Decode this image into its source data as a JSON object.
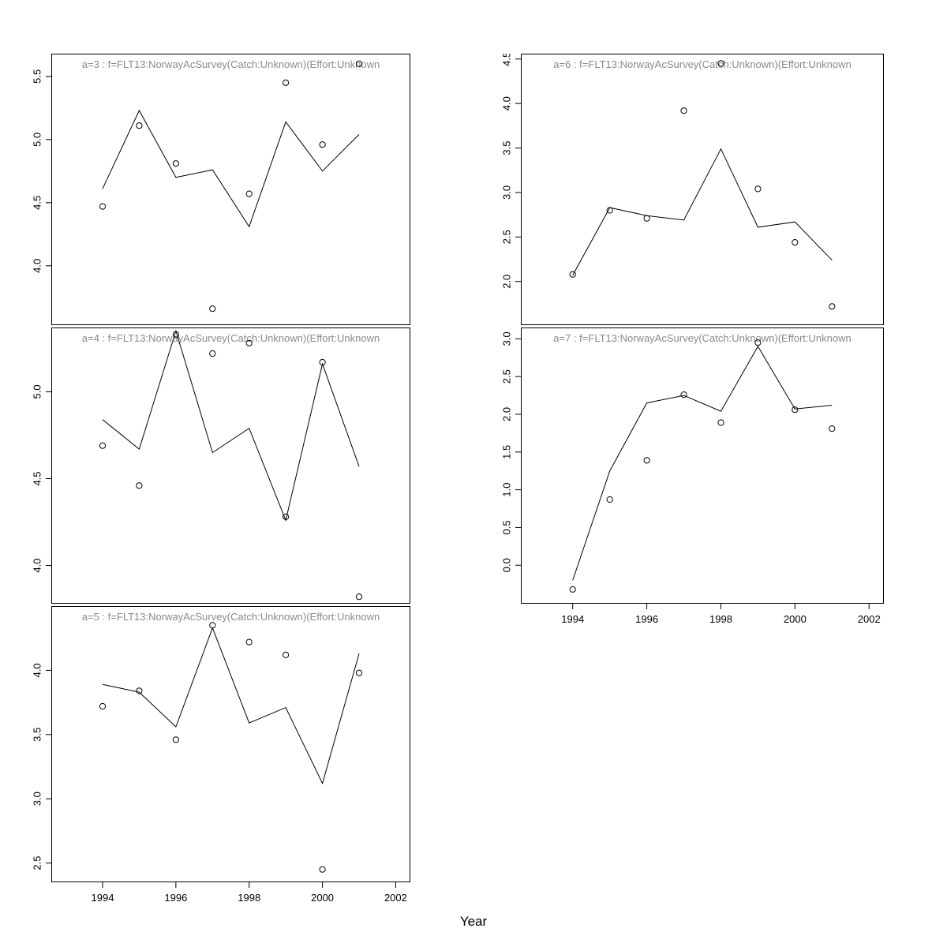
{
  "figure": {
    "xlabel": "Year",
    "background": "#ffffff",
    "line_color": "#000000",
    "point_color": "#000000",
    "title_color": "#8a8a8a"
  },
  "chart_data": [
    {
      "type": "line",
      "panel": "a=3",
      "title": "a=3  :  f=FLT13:NorwayAcSurvey(Catch:Unknown)(Effort:Unknown",
      "x": [
        1994,
        1995,
        1996,
        1997,
        1998,
        1999,
        2000,
        2001
      ],
      "series": [
        {
          "name": "fitted",
          "style": "line",
          "values": [
            4.61,
            5.23,
            4.7,
            4.76,
            4.31,
            5.14,
            4.75,
            5.04
          ]
        },
        {
          "name": "observed",
          "style": "points",
          "values": [
            4.47,
            5.11,
            4.81,
            3.66,
            4.57,
            5.45,
            4.96,
            5.6
          ]
        }
      ],
      "xlim": [
        1992.6,
        2002.4
      ],
      "ylim": [
        3.53,
        5.68
      ],
      "xticks": [
        1994,
        1996,
        1998,
        2000,
        2002
      ],
      "yticks": [
        4.0,
        4.5,
        5.0,
        5.5
      ],
      "x_axis_labels": false,
      "grid": "off",
      "legend": "none"
    },
    {
      "type": "line",
      "panel": "a=4",
      "title": "a=4  :  f=FLT13:NorwayAcSurvey(Catch:Unknown)(Effort:Unknown",
      "x": [
        1994,
        1995,
        1996,
        1997,
        1998,
        1999,
        2000,
        2001
      ],
      "series": [
        {
          "name": "fitted",
          "style": "line",
          "values": [
            4.84,
            4.67,
            5.35,
            4.65,
            4.79,
            4.26,
            5.16,
            4.57
          ]
        },
        {
          "name": "observed",
          "style": "points",
          "values": [
            4.69,
            4.46,
            5.33,
            5.22,
            5.28,
            4.28,
            5.17,
            3.82
          ]
        }
      ],
      "xlim": [
        1992.6,
        2002.4
      ],
      "ylim": [
        3.78,
        5.37
      ],
      "xticks": [
        1994,
        1996,
        1998,
        2000,
        2002
      ],
      "yticks": [
        4.0,
        4.5,
        5.0
      ],
      "x_axis_labels": false,
      "grid": "off",
      "legend": "none"
    },
    {
      "type": "line",
      "panel": "a=5",
      "title": "a=5  :  f=FLT13:NorwayAcSurvey(Catch:Unknown)(Effort:Unknown",
      "x": [
        1994,
        1995,
        1996,
        1997,
        1998,
        1999,
        2000,
        2001
      ],
      "series": [
        {
          "name": "fitted",
          "style": "line",
          "values": [
            3.89,
            3.83,
            3.56,
            4.33,
            3.59,
            3.71,
            3.12,
            4.13
          ]
        },
        {
          "name": "observed",
          "style": "points",
          "values": [
            3.72,
            3.84,
            3.46,
            4.35,
            4.22,
            4.12,
            2.45,
            3.98
          ]
        }
      ],
      "xlim": [
        1992.6,
        2002.4
      ],
      "ylim": [
        2.35,
        4.5
      ],
      "xticks": [
        1994,
        1996,
        1998,
        2000,
        2002
      ],
      "yticks": [
        2.5,
        3.0,
        3.5,
        4.0
      ],
      "x_axis_labels": true,
      "grid": "off",
      "legend": "none"
    },
    {
      "type": "line",
      "panel": "a=6",
      "title": "a=6  :  f=FLT13:NorwayAcSurvey(Catch:Unknown)(Effort:Unknown",
      "x": [
        1994,
        1995,
        1996,
        1997,
        1998,
        1999,
        2000,
        2001
      ],
      "series": [
        {
          "name": "fitted",
          "style": "line",
          "values": [
            2.07,
            2.83,
            2.74,
            2.69,
            3.49,
            2.61,
            2.67,
            2.24
          ]
        },
        {
          "name": "observed",
          "style": "points",
          "values": [
            2.08,
            2.8,
            2.71,
            3.92,
            4.45,
            3.04,
            2.44,
            1.72
          ]
        }
      ],
      "xlim": [
        1992.6,
        2002.4
      ],
      "ylim": [
        1.51,
        4.56
      ],
      "xticks": [
        1994,
        1996,
        1998,
        2000,
        2002
      ],
      "yticks": [
        2.0,
        2.5,
        3.0,
        3.5,
        4.0,
        4.5
      ],
      "x_axis_labels": false,
      "grid": "off",
      "legend": "none"
    },
    {
      "type": "line",
      "panel": "a=7",
      "title": "a=7  :  f=FLT13:NorwayAcSurvey(Catch:Unknown)(Effort:Unknown",
      "x": [
        1994,
        1995,
        1996,
        1997,
        1998,
        1999,
        2000,
        2001
      ],
      "series": [
        {
          "name": "fitted",
          "style": "line",
          "values": [
            -0.2,
            1.25,
            2.15,
            2.25,
            2.04,
            2.9,
            2.07,
            2.12
          ]
        },
        {
          "name": "observed",
          "style": "points",
          "values": [
            -0.32,
            0.87,
            1.39,
            2.26,
            1.89,
            2.95,
            2.06,
            1.81
          ]
        }
      ],
      "xlim": [
        1992.6,
        2002.4
      ],
      "ylim": [
        -0.51,
        3.15
      ],
      "xticks": [
        1994,
        1996,
        1998,
        2000,
        2002
      ],
      "yticks": [
        0.0,
        0.5,
        1.0,
        1.5,
        2.0,
        2.5,
        3.0
      ],
      "x_axis_labels": true,
      "grid": "off",
      "legend": "none"
    }
  ]
}
